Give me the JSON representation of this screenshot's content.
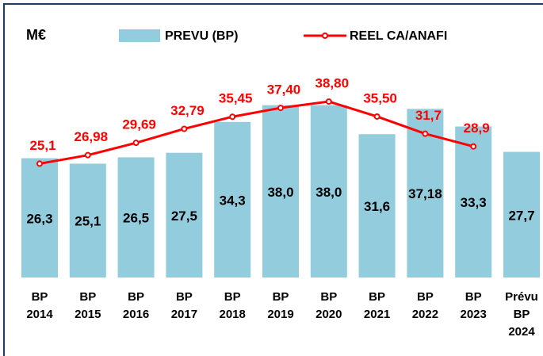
{
  "chart_data": {
    "type": "bar_line",
    "unit_label": "M€",
    "categories": [
      "BP 2014",
      "BP 2015",
      "BP 2016",
      "BP 2017",
      "BP 2018",
      "BP 2019",
      "BP 2020",
      "BP 2021",
      "BP 2022",
      "BP 2023",
      "Prévu BP 2024"
    ],
    "series": [
      {
        "name": "PREVU (BP)",
        "type": "bar",
        "color": "#93cddd",
        "values": [
          26.3,
          25.1,
          26.5,
          27.5,
          34.3,
          38.0,
          38.0,
          31.6,
          37.18,
          33.3,
          27.7
        ],
        "value_labels": [
          "26,3",
          "25,1",
          "26,5",
          "27,5",
          "34,3",
          "38,0",
          "38,0",
          "31,6",
          "37,18",
          "33,3",
          "27,7"
        ]
      },
      {
        "name": "REEL CA/ANAFI",
        "type": "line",
        "color": "#ff0000",
        "values": [
          25.1,
          26.98,
          29.69,
          32.79,
          35.45,
          37.4,
          38.8,
          35.5,
          31.7,
          28.9,
          null
        ],
        "value_labels": [
          "25,1",
          "26,98",
          "29,69",
          "32,79",
          "35,45",
          "37,40",
          "38,80",
          "35,50",
          "31,7",
          "28,9",
          null
        ]
      }
    ]
  }
}
